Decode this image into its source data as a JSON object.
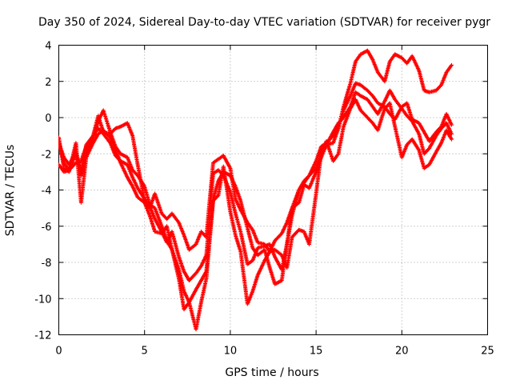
{
  "chart_data": {
    "type": "scatter",
    "title": "Day 350 of 2024, Sidereal Day-to-day VTEC variation (SDTVAR) for receiver pygr",
    "xlabel": "GPS time / hours",
    "ylabel": "SDTVAR / TECUs",
    "xlim": [
      0,
      25
    ],
    "ylim": [
      -12,
      4
    ],
    "xticks": [
      "0",
      "5",
      "10",
      "15",
      "20",
      "25"
    ],
    "yticks": [
      "-12",
      "-10",
      "-8",
      "-6",
      "-4",
      "-2",
      "0",
      "2",
      "4"
    ],
    "grid": true,
    "marker": "+",
    "color": "#ff0000",
    "series": [
      {
        "x": [
          0.0,
          0.3,
          0.6,
          1.0,
          1.3,
          1.6,
          2.0,
          2.3,
          2.6,
          3.0,
          3.3,
          3.6,
          4.0,
          4.3,
          4.6,
          5.0,
          5.3,
          5.6,
          6.0,
          6.3,
          6.6,
          7.0,
          7.3,
          7.6,
          8.0,
          8.3,
          8.6,
          9.0,
          9.3,
          9.6,
          10.0,
          10.3,
          10.6,
          11.0,
          11.3,
          11.6,
          12.0,
          12.3,
          12.6,
          13.0,
          13.3,
          13.6,
          14.0,
          14.3,
          14.6,
          15.0,
          15.3,
          15.6,
          16.0,
          16.3,
          16.6,
          17.0,
          17.3,
          17.6,
          18.0,
          18.3,
          18.6,
          19.0,
          19.3,
          19.6,
          20.0,
          20.3,
          20.6,
          21.0,
          21.3,
          21.6,
          22.0,
          22.3,
          22.6,
          22.9
        ],
        "y": [
          -1.3,
          -2.5,
          -2.9,
          -2.0,
          -3.2,
          -2.0,
          -1.0,
          0.1,
          -0.8,
          -0.9,
          -0.6,
          -0.5,
          -0.3,
          -1.0,
          -2.6,
          -4.6,
          -5.0,
          -4.2,
          -5.3,
          -5.6,
          -5.3,
          -5.8,
          -6.5,
          -7.3,
          -7.0,
          -6.3,
          -6.6,
          -2.5,
          -2.3,
          -2.1,
          -2.8,
          -4.5,
          -5.1,
          -5.8,
          -6.2,
          -6.9,
          -7.0,
          -7.4,
          -6.8,
          -6.4,
          -5.8,
          -5.0,
          -4.0,
          -3.5,
          -3.2,
          -2.8,
          -2.2,
          -1.5,
          -1.4,
          -0.6,
          0.6,
          1.9,
          3.1,
          3.5,
          3.7,
          3.2,
          2.5,
          2.0,
          3.1,
          3.5,
          3.3,
          3.0,
          3.4,
          2.6,
          1.5,
          1.4,
          1.5,
          1.8,
          2.5,
          2.9
        ]
      },
      {
        "x": [
          0.0,
          0.3,
          0.6,
          1.0,
          1.3,
          1.6,
          2.0,
          2.3,
          2.6,
          3.0,
          3.3,
          3.6,
          4.0,
          4.3,
          4.6,
          5.0,
          5.3,
          5.6,
          6.0,
          6.3,
          6.6,
          7.0,
          7.3,
          7.6,
          8.0,
          8.3,
          8.6,
          9.0,
          9.3,
          9.6,
          10.0,
          10.3,
          10.6,
          11.0,
          11.3,
          11.6,
          12.0,
          12.3,
          12.6,
          13.0,
          13.3,
          13.6,
          14.0,
          14.3,
          14.6,
          15.0,
          15.3,
          15.6,
          16.0,
          16.3,
          16.6,
          17.0,
          17.3,
          17.6,
          18.0,
          18.3,
          18.6,
          19.0,
          19.3,
          19.6,
          20.0,
          20.3,
          20.6,
          21.0,
          21.3,
          21.6,
          22.0,
          22.3,
          22.6,
          22.9
        ],
        "y": [
          -2.6,
          -3.0,
          -2.9,
          -2.5,
          -2.4,
          -1.6,
          -1.2,
          -0.2,
          0.4,
          -0.8,
          -1.6,
          -2.0,
          -2.2,
          -2.9,
          -3.2,
          -3.8,
          -4.8,
          -5.0,
          -6.0,
          -6.8,
          -7.3,
          -8.9,
          -10.6,
          -10.2,
          -9.5,
          -9.0,
          -8.5,
          -4.5,
          -3.5,
          -3.0,
          -3.2,
          -3.8,
          -4.6,
          -6.1,
          -7.2,
          -7.6,
          -7.3,
          -8.3,
          -9.2,
          -9.0,
          -7.0,
          -5.4,
          -4.0,
          -3.6,
          -3.2,
          -2.4,
          -1.6,
          -1.4,
          -1.0,
          -0.6,
          0.4,
          1.2,
          1.9,
          1.8,
          1.5,
          1.2,
          0.8,
          0.6,
          0.2,
          -0.1,
          0.6,
          0.8,
          -0.1,
          -0.3,
          -0.8,
          -1.3,
          -0.8,
          -0.5,
          0.2,
          -0.4
        ]
      },
      {
        "x": [
          0.0,
          0.3,
          0.6,
          1.0,
          1.3,
          1.6,
          2.0,
          2.3,
          2.6,
          3.0,
          3.3,
          3.6,
          4.0,
          4.3,
          4.6,
          5.0,
          5.3,
          5.6,
          6.0,
          6.3,
          6.6,
          7.0,
          7.3,
          7.6,
          8.0,
          8.3,
          8.6,
          9.0,
          9.3,
          9.6,
          10.0,
          10.3,
          10.6,
          11.0,
          11.3,
          11.6,
          12.0,
          12.3,
          12.6,
          13.0,
          13.3,
          13.6,
          14.0,
          14.3,
          14.6,
          15.0,
          15.3,
          15.6,
          16.0,
          16.3,
          16.6,
          17.0,
          17.3,
          17.6,
          18.0,
          18.3,
          18.6,
          19.0,
          19.3,
          19.6,
          20.0,
          20.3,
          20.6,
          21.0,
          21.3,
          21.6,
          22.0,
          22.3,
          22.6,
          22.9
        ],
        "y": [
          -1.1,
          -2.8,
          -3.0,
          -1.4,
          -4.7,
          -2.2,
          -1.4,
          -0.9,
          -0.7,
          -1.1,
          -1.7,
          -2.5,
          -3.3,
          -3.8,
          -4.4,
          -4.7,
          -5.4,
          -6.3,
          -6.4,
          -6.0,
          -7.3,
          -8.4,
          -9.6,
          -10.2,
          -11.7,
          -10.2,
          -8.9,
          -4.6,
          -4.3,
          -2.7,
          -5.2,
          -6.5,
          -7.4,
          -10.3,
          -9.6,
          -8.7,
          -7.9,
          -7.4,
          -7.3,
          -7.6,
          -8.3,
          -6.6,
          -6.2,
          -6.3,
          -7.0,
          -4.2,
          -2.0,
          -1.3,
          -2.4,
          -2.0,
          -0.5,
          0.5,
          1.0,
          0.4,
          0.0,
          -0.3,
          -0.7,
          0.5,
          0.8,
          -0.5,
          -2.2,
          -1.5,
          -1.2,
          -1.8,
          -2.8,
          -2.6,
          -1.9,
          -1.4,
          -0.7,
          -1.2
        ]
      },
      {
        "x": [
          0.0,
          0.3,
          0.6,
          1.0,
          1.3,
          1.6,
          2.0,
          2.3,
          2.6,
          3.0,
          3.3,
          3.6,
          4.0,
          4.3,
          4.6,
          5.0,
          5.3,
          5.6,
          6.0,
          6.3,
          6.6,
          7.0,
          7.3,
          7.6,
          8.0,
          8.3,
          8.6,
          9.0,
          9.3,
          9.6,
          10.0,
          10.3,
          10.6,
          11.0,
          11.3,
          11.6,
          12.0,
          12.3,
          12.6,
          13.0,
          13.3,
          13.6,
          14.0,
          14.3,
          14.6,
          15.0,
          15.3,
          15.6,
          16.0,
          16.3,
          16.6,
          17.0,
          17.3,
          17.6,
          18.0,
          18.3,
          18.6,
          19.0,
          19.3,
          19.6,
          20.0,
          20.3,
          20.6,
          21.0,
          21.3,
          21.6,
          22.0,
          22.3,
          22.6,
          22.9
        ],
        "y": [
          -1.4,
          -2.2,
          -2.6,
          -1.9,
          -2.9,
          -1.5,
          -1.0,
          -0.6,
          -0.9,
          -1.4,
          -2.1,
          -2.4,
          -2.6,
          -3.3,
          -3.9,
          -4.5,
          -4.9,
          -5.6,
          -6.3,
          -6.9,
          -6.3,
          -7.7,
          -8.5,
          -9.0,
          -8.6,
          -8.2,
          -7.6,
          -3.1,
          -2.9,
          -3.2,
          -4.1,
          -5.3,
          -6.3,
          -8.1,
          -7.9,
          -7.2,
          -7.1,
          -7.0,
          -7.7,
          -8.4,
          -7.0,
          -5.0,
          -4.7,
          -3.7,
          -3.9,
          -3.0,
          -2.0,
          -1.5,
          -0.8,
          -0.3,
          0.0,
          0.6,
          1.4,
          1.2,
          1.0,
          0.6,
          0.2,
          0.9,
          1.5,
          1.0,
          0.5,
          0.1,
          -0.2,
          -0.9,
          -2.0,
          -1.7,
          -1.0,
          -0.6,
          -0.3,
          -0.9
        ]
      }
    ]
  }
}
